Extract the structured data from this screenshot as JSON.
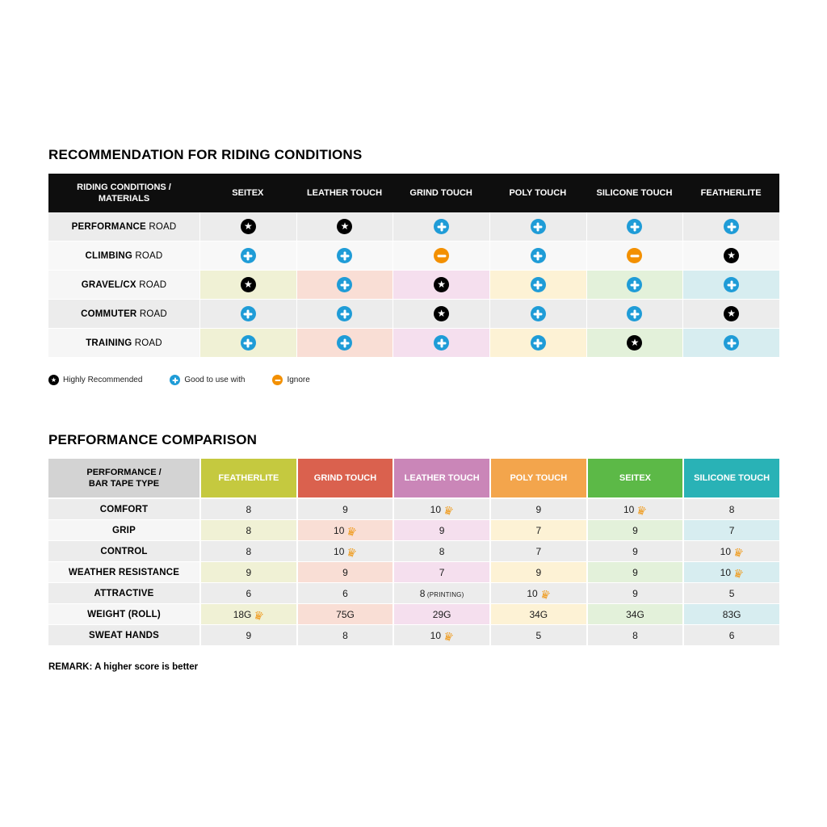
{
  "colors": {
    "page_bg": "#ffffff",
    "table_header_bg": "#0e0e0e",
    "star_icon_bg": "#000000",
    "plus_icon_bg": "#1f9cd7",
    "minus_icon_bg": "#f39000",
    "crown_color": "#ef9b1e",
    "gray_row_bg": "#ececec",
    "plain_row_bg": "#f8f8f8",
    "tinted_row_label_bg": "#f6f6f6",
    "perf_label_header_bg": "#d3d3d3",
    "column_header_colors": [
      "#c5c93f",
      "#da614e",
      "#ca86b8",
      "#f3a54c",
      "#5cb947",
      "#29b2b6"
    ],
    "column_tint_colors": [
      "#f0f1d5",
      "#f9ded5",
      "#f5dfee",
      "#fdf2d5",
      "#e3f1da",
      "#d7edf0"
    ]
  },
  "icons": {
    "star": "★",
    "plus": "+",
    "minus": "−",
    "crown": "♛"
  },
  "recommendation": {
    "title": "RECOMMENDATION FOR RIDING CONDITIONS",
    "header": {
      "label_line1": "RIDING CONDITIONS /",
      "label_line2": "MATERIALS",
      "columns": [
        "SEITEX",
        "LEATHER TOUCH",
        "GRIND TOUCH",
        "POLY TOUCH",
        "SILICONE TOUCH",
        "FEATHERLITE"
      ]
    },
    "rows": [
      {
        "label_bold": "PERFORMANCE",
        "label_rest": "ROAD",
        "variant": "gray",
        "cells": [
          "star",
          "star",
          "plus",
          "plus",
          "plus",
          "plus"
        ]
      },
      {
        "label_bold": "CLIMBING",
        "label_rest": "ROAD",
        "variant": "plain",
        "cells": [
          "plus",
          "plus",
          "minus",
          "plus",
          "minus",
          "star"
        ]
      },
      {
        "label_bold": "GRAVEL/CX",
        "label_rest": "ROAD",
        "variant": "tinted",
        "cells": [
          "star",
          "plus",
          "star",
          "plus",
          "plus",
          "plus"
        ]
      },
      {
        "label_bold": "COMMUTER",
        "label_rest": "ROAD",
        "variant": "gray",
        "cells": [
          "plus",
          "plus",
          "star",
          "plus",
          "plus",
          "star"
        ]
      },
      {
        "label_bold": "TRAINING",
        "label_rest": "ROAD",
        "variant": "tinted",
        "cells": [
          "plus",
          "plus",
          "plus",
          "plus",
          "star",
          "plus"
        ]
      }
    ],
    "legend": [
      {
        "icon": "star",
        "label": "Highly Recommended"
      },
      {
        "icon": "plus",
        "label": "Good to use with"
      },
      {
        "icon": "minus",
        "label": "Ignore"
      }
    ]
  },
  "performance": {
    "title": "PERFORMANCE COMPARISON",
    "header": {
      "label_line1": "PERFORMANCE /",
      "label_line2": "BAR TAPE TYPE",
      "columns": [
        "FEATHERLITE",
        "GRIND TOUCH",
        "LEATHER TOUCH",
        "POLY TOUCH",
        "SEITEX",
        "SILICONE TOUCH"
      ]
    },
    "rows": [
      {
        "label": "COMFORT",
        "variant": "gray",
        "cells": [
          {
            "value": "8"
          },
          {
            "value": "9"
          },
          {
            "value": "10",
            "crown": true
          },
          {
            "value": "9"
          },
          {
            "value": "10",
            "crown": true
          },
          {
            "value": "8"
          }
        ]
      },
      {
        "label": "GRIP",
        "variant": "tinted",
        "cells": [
          {
            "value": "8"
          },
          {
            "value": "10",
            "crown": true
          },
          {
            "value": "9"
          },
          {
            "value": "7"
          },
          {
            "value": "9"
          },
          {
            "value": "7"
          }
        ]
      },
      {
        "label": "CONTROL",
        "variant": "gray",
        "cells": [
          {
            "value": "8"
          },
          {
            "value": "10",
            "crown": true
          },
          {
            "value": "8"
          },
          {
            "value": "7"
          },
          {
            "value": "9"
          },
          {
            "value": "10",
            "crown": true
          }
        ]
      },
      {
        "label": "WEATHER RESISTANCE",
        "variant": "tinted",
        "cells": [
          {
            "value": "9"
          },
          {
            "value": "9"
          },
          {
            "value": "7"
          },
          {
            "value": "9"
          },
          {
            "value": "9"
          },
          {
            "value": "10",
            "crown": true
          }
        ]
      },
      {
        "label": "ATTRACTIVE",
        "variant": "gray",
        "cells": [
          {
            "value": "6"
          },
          {
            "value": "6"
          },
          {
            "value": "8",
            "suffix": "(PRINTING)"
          },
          {
            "value": "10",
            "crown": true
          },
          {
            "value": "9"
          },
          {
            "value": "5"
          }
        ]
      },
      {
        "label": "WEIGHT (ROLL)",
        "variant": "tinted",
        "cells": [
          {
            "value": "18G",
            "crown": true
          },
          {
            "value": "75G"
          },
          {
            "value": "29G"
          },
          {
            "value": "34G"
          },
          {
            "value": "34G"
          },
          {
            "value": "83G"
          }
        ]
      },
      {
        "label": "SWEAT HANDS",
        "variant": "gray",
        "cells": [
          {
            "value": "9"
          },
          {
            "value": "8"
          },
          {
            "value": "10",
            "crown": true
          },
          {
            "value": "5"
          },
          {
            "value": "8"
          },
          {
            "value": "6"
          }
        ]
      }
    ],
    "remark": "REMARK: A higher score is better"
  },
  "chart_data": [
    {
      "type": "table",
      "title": "RECOMMENDATION FOR RIDING CONDITIONS",
      "columns": [
        "RIDING CONDITIONS / MATERIALS",
        "SEITEX",
        "LEATHER TOUCH",
        "GRIND TOUCH",
        "POLY TOUCH",
        "SILICONE TOUCH",
        "FEATHERLITE"
      ],
      "rows": [
        [
          "PERFORMANCE ROAD",
          "Highly Recommended",
          "Highly Recommended",
          "Good to use with",
          "Good to use with",
          "Good to use with",
          "Good to use with"
        ],
        [
          "CLIMBING ROAD",
          "Good to use with",
          "Good to use with",
          "Ignore",
          "Good to use with",
          "Ignore",
          "Highly Recommended"
        ],
        [
          "GRAVEL/CX ROAD",
          "Highly Recommended",
          "Good to use with",
          "Highly Recommended",
          "Good to use with",
          "Good to use with",
          "Good to use with"
        ],
        [
          "COMMUTER ROAD",
          "Good to use with",
          "Good to use with",
          "Highly Recommended",
          "Good to use with",
          "Good to use with",
          "Highly Recommended"
        ],
        [
          "TRAINING ROAD",
          "Good to use with",
          "Good to use with",
          "Good to use with",
          "Good to use with",
          "Highly Recommended",
          "Good to use with"
        ]
      ],
      "legend": [
        "Highly Recommended",
        "Good to use with",
        "Ignore"
      ]
    },
    {
      "type": "table",
      "title": "PERFORMANCE COMPARISON",
      "columns": [
        "PERFORMANCE / BAR TAPE TYPE",
        "FEATHERLITE",
        "GRIND TOUCH",
        "LEATHER TOUCH",
        "POLY TOUCH",
        "SEITEX",
        "SILICONE TOUCH"
      ],
      "rows": [
        [
          "COMFORT",
          "8",
          "9",
          "10 (crown)",
          "9",
          "10 (crown)",
          "8"
        ],
        [
          "GRIP",
          "8",
          "10 (crown)",
          "9",
          "7",
          "9",
          "7"
        ],
        [
          "CONTROL",
          "8",
          "10 (crown)",
          "8",
          "7",
          "9",
          "10 (crown)"
        ],
        [
          "WEATHER RESISTANCE",
          "9",
          "9",
          "7",
          "9",
          "9",
          "10 (crown)"
        ],
        [
          "ATTRACTIVE",
          "6",
          "6",
          "8 (PRINTING)",
          "10 (crown)",
          "9",
          "5"
        ],
        [
          "WEIGHT (ROLL)",
          "18G (crown)",
          "75G",
          "29G",
          "34G",
          "34G",
          "83G"
        ],
        [
          "SWEAT HANDS",
          "9",
          "8",
          "10 (crown)",
          "5",
          "8",
          "6"
        ]
      ],
      "note": "REMARK: A higher score is better"
    }
  ]
}
